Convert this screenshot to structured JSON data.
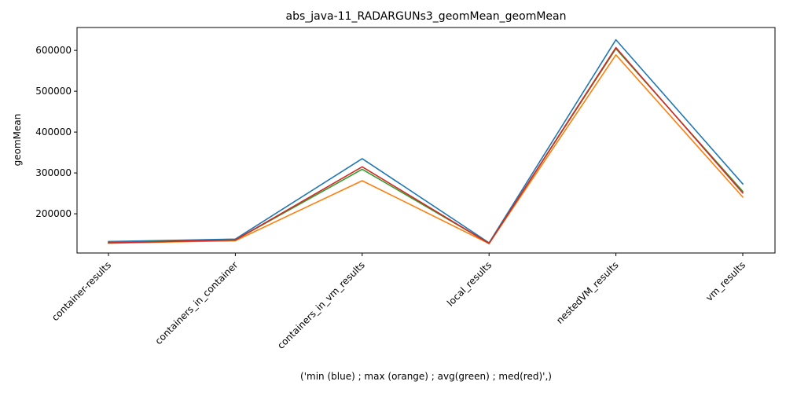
{
  "chart_data": {
    "type": "line",
    "title": "abs_java-11_RADARGUNs3_geomMean_geomMean",
    "xlabel": "('min (blue) ; max (orange) ; avg(green) ; med(red)',)",
    "ylabel": "geomMean",
    "categories": [
      "container-results",
      "containers_in_container",
      "containers_in_vm_results",
      "local_results",
      "nestedVM_results",
      "vm_results"
    ],
    "yticks": [
      200000,
      300000,
      400000,
      500000,
      600000
    ],
    "ytick_labels": [
      "200000",
      "300000",
      "400000",
      "500000",
      "600000"
    ],
    "ylim": [
      104000,
      656000
    ],
    "grid": false,
    "series": [
      {
        "color": "#1f77b4",
        "values": [
          132000,
          138000,
          335000,
          129000,
          626000,
          273000
        ]
      },
      {
        "color": "#ff7f0e",
        "values": [
          128000,
          134000,
          281000,
          127000,
          589000,
          241000
        ]
      },
      {
        "color": "#2ca02c",
        "values": [
          130000,
          136000,
          309000,
          128000,
          604000,
          255000
        ]
      },
      {
        "color": "#d62728",
        "values": [
          129000,
          136000,
          315000,
          127500,
          607000,
          251000
        ]
      }
    ]
  }
}
